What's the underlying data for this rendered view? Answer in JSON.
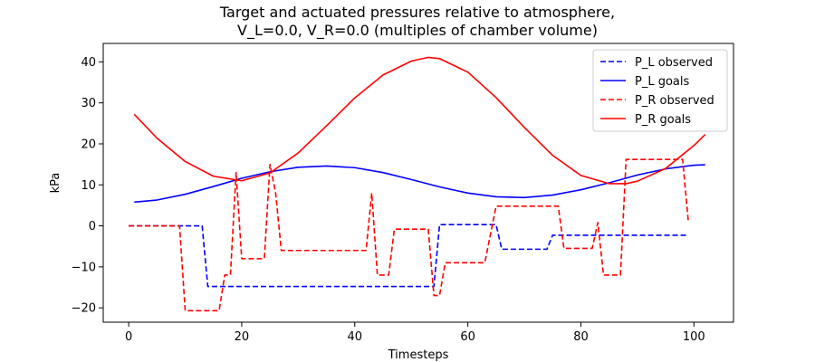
{
  "chart_data": {
    "type": "line",
    "title_line1": "Target and actuated pressures relative to atmosphere,",
    "title_line2": "V_L=0.0,     V_R=0.0 (multiples of chamber volume)",
    "xlabel": "Timesteps",
    "ylabel": "kPa",
    "xlim": [
      -4.5,
      107
    ],
    "ylim": [
      -23.5,
      44.5
    ],
    "xticks": [
      0,
      20,
      40,
      60,
      80,
      100
    ],
    "yticks": [
      -20,
      -10,
      0,
      10,
      20,
      30,
      40
    ],
    "ytick_labels": [
      "−20",
      "−10",
      "0",
      "10",
      "20",
      "30",
      "40"
    ],
    "grid": false,
    "legend_position": "top-right",
    "series": [
      {
        "name": "P_L observed",
        "color": "#0000ff",
        "style": "dashed",
        "step": true,
        "points": [
          [
            0,
            0
          ],
          [
            13,
            0
          ],
          [
            14,
            -14.8
          ],
          [
            54,
            -14.8
          ],
          [
            55,
            0.3
          ],
          [
            65,
            0.3
          ],
          [
            66,
            -5.7
          ],
          [
            74,
            -5.7
          ],
          [
            75,
            -2.3
          ],
          [
            99,
            -2.3
          ]
        ]
      },
      {
        "name": "P_L goals",
        "color": "#0000ff",
        "style": "solid",
        "step": false,
        "points": [
          [
            1,
            5.8
          ],
          [
            5,
            6.3
          ],
          [
            10,
            7.7
          ],
          [
            15,
            9.6
          ],
          [
            20,
            11.6
          ],
          [
            25,
            13.2
          ],
          [
            30,
            14.3
          ],
          [
            35,
            14.6
          ],
          [
            40,
            14.2
          ],
          [
            45,
            13.0
          ],
          [
            50,
            11.3
          ],
          [
            55,
            9.5
          ],
          [
            60,
            8.0
          ],
          [
            65,
            7.1
          ],
          [
            70,
            6.9
          ],
          [
            75,
            7.5
          ],
          [
            80,
            8.8
          ],
          [
            85,
            10.5
          ],
          [
            90,
            12.4
          ],
          [
            95,
            13.9
          ],
          [
            100,
            14.8
          ],
          [
            102,
            14.9
          ]
        ]
      },
      {
        "name": "P_R observed",
        "color": "#ff0000",
        "style": "dashed",
        "step": false,
        "points": [
          [
            0,
            0
          ],
          [
            9,
            0
          ],
          [
            10,
            -20.7
          ],
          [
            16,
            -20.7
          ],
          [
            17,
            -12
          ],
          [
            18,
            -12
          ],
          [
            19,
            13
          ],
          [
            20,
            -8
          ],
          [
            24,
            -8
          ],
          [
            25,
            15
          ],
          [
            26,
            8
          ],
          [
            27,
            -6
          ],
          [
            42,
            -6
          ],
          [
            43,
            8
          ],
          [
            44,
            -12
          ],
          [
            46,
            -12
          ],
          [
            47,
            -0.8
          ],
          [
            53,
            -0.8
          ],
          [
            54,
            -17
          ],
          [
            55,
            -17
          ],
          [
            56,
            -9
          ],
          [
            63,
            -9
          ],
          [
            65,
            4.8
          ],
          [
            76,
            4.8
          ],
          [
            77,
            -5.5
          ],
          [
            82,
            -5.5
          ],
          [
            83,
            0.8
          ],
          [
            84,
            -12
          ],
          [
            87,
            -12
          ],
          [
            88,
            16.2
          ],
          [
            98,
            16.2
          ],
          [
            99,
            1.2
          ]
        ]
      },
      {
        "name": "P_R goals",
        "color": "#ff0000",
        "style": "solid",
        "step": false,
        "points": [
          [
            1,
            27.2
          ],
          [
            5,
            21.4
          ],
          [
            10,
            15.7
          ],
          [
            15,
            12.1
          ],
          [
            20,
            11.0
          ],
          [
            25,
            12.9
          ],
          [
            30,
            17.8
          ],
          [
            35,
            24.4
          ],
          [
            40,
            31.2
          ],
          [
            45,
            36.8
          ],
          [
            50,
            40.2
          ],
          [
            53,
            41.1
          ],
          [
            55,
            40.8
          ],
          [
            60,
            37.5
          ],
          [
            65,
            31.3
          ],
          [
            70,
            24.0
          ],
          [
            75,
            17.2
          ],
          [
            80,
            12.3
          ],
          [
            85,
            10.3
          ],
          [
            88,
            10.3
          ],
          [
            90,
            10.9
          ],
          [
            95,
            14.0
          ],
          [
            100,
            19.6
          ],
          [
            102,
            22.3
          ]
        ]
      }
    ]
  }
}
